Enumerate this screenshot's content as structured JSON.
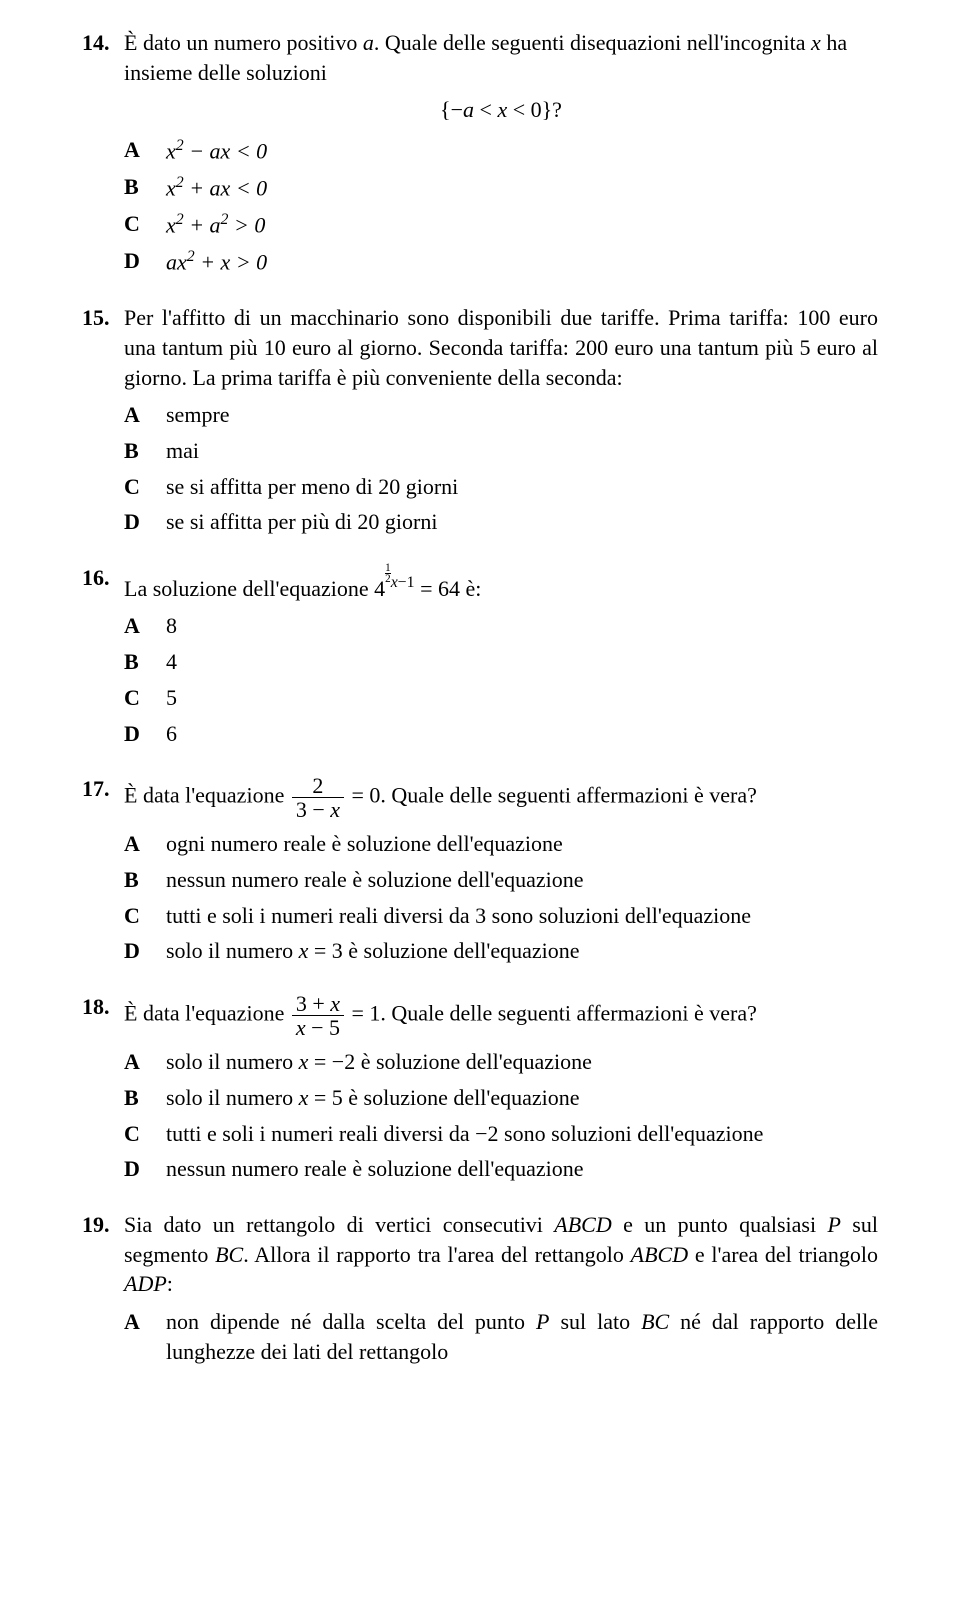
{
  "questions": [
    {
      "num": "14.",
      "stem_pre": "È dato un numero positivo ",
      "stem_var": "a",
      "stem_post": ". Quale delle seguenti disequazioni nell'incognita ",
      "stem_var2": "x",
      "stem_end": " ha insieme delle soluzioni",
      "center": "{−a < x < 0}?",
      "center_a": "a",
      "center_x": "x",
      "opts": {
        "A": {
          "expr": "x² − ax < 0"
        },
        "B": {
          "expr": "x² + ax < 0"
        },
        "C": {
          "expr": "x² + a² > 0"
        },
        "D": {
          "expr": "ax² + x > 0"
        }
      }
    },
    {
      "num": "15.",
      "stem": "Per l'affitto di un macchinario sono disponibili due tariffe. Prima tariffa: 100 euro una tantum più 10 euro al giorno. Seconda tariffa: 200 euro una tantum più 5 euro al giorno. La prima tariffa è più conveniente della seconda:",
      "opts": {
        "A": "sempre",
        "B": "mai",
        "C": "se si affitta per meno di 20 giorni",
        "D": "se si affitta per più di 20 giorni"
      }
    },
    {
      "num": "16.",
      "stem_pre": "La soluzione dell'equazione 4",
      "stem_sup_a": "½",
      "stem_sup_x": "x",
      "stem_sup_end": "−1",
      "stem_post": " = 64 è:",
      "opts": {
        "A": "8",
        "B": "4",
        "C": "5",
        "D": "6"
      }
    },
    {
      "num": "17.",
      "stem_pre": "È data l'equazione ",
      "frac_num": "2",
      "frac_den_pre": "3 − ",
      "frac_den_x": "x",
      "stem_post": " = 0. Quale delle seguenti affermazioni è vera?",
      "opts": {
        "A": "ogni numero reale è soluzione dell'equazione",
        "B": "nessun numero reale è soluzione dell'equazione",
        "C": "tutti e soli i numeri reali diversi da 3 sono soluzioni dell'equazione",
        "D_pre": "solo il numero ",
        "D_x": "x",
        "D_post": " = 3 è soluzione dell'equazione"
      }
    },
    {
      "num": "18.",
      "stem_pre": "È data l'equazione ",
      "frac_num_pre": "3 + ",
      "frac_num_x": "x",
      "frac_den_x": "x",
      "frac_den_post": " − 5",
      "stem_post": " = 1. Quale delle seguenti affermazioni è vera?",
      "opts": {
        "A_pre": "solo il numero ",
        "A_x": "x",
        "A_post": " = −2 è soluzione dell'equazione",
        "B_pre": "solo il numero ",
        "B_x": "x",
        "B_post": " = 5 è soluzione dell'equazione",
        "C": "tutti e soli i numeri reali diversi da −2 sono soluzioni dell'equazione",
        "D": "nessun numero reale è soluzione dell'equazione"
      }
    },
    {
      "num": "19.",
      "stem_pre": "Sia dato un rettangolo di vertici consecutivi ",
      "ABCD": "ABCD",
      "stem_mid1": " e un punto qualsiasi ",
      "P": "P",
      "stem_mid2": " sul segmento ",
      "BC": "BC",
      "stem_mid3": ". Allora il rapporto tra l'area del rettangolo ",
      "stem_mid4": " e l'area del triangolo ",
      "ADP": "ADP",
      "stem_end": ":",
      "opts": {
        "A_pre": "non dipende né dalla scelta del punto ",
        "A_P": "P",
        "A_mid1": " sul lato ",
        "A_BC": "BC",
        "A_post": " né dal rapporto delle lunghezze dei lati del rettangolo"
      }
    }
  ]
}
